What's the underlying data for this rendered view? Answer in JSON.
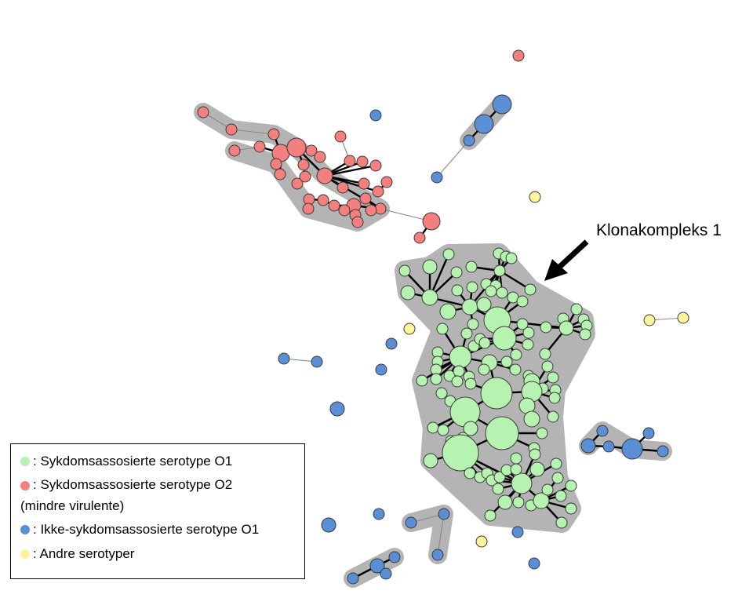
{
  "annotation": {
    "label": "Klonakompleks 1"
  },
  "colors": {
    "o1_disease": "#b6f2b0",
    "o2_disease": "#f47f7f",
    "o1_non_disease": "#5a8fd6",
    "other": "#fdf59c",
    "hull": "#b4b4b4"
  },
  "legend": {
    "items": [
      {
        "label": ": Sykdomsassosierte serotype O1",
        "color": "#b6f2b0"
      },
      {
        "label": ": Sykdomsassosierte serotype O2",
        "sub": "(mindre virulente)",
        "color": "#f47f7f"
      },
      {
        "label": ": Ikke-sykdomsassosierte serotype O1",
        "color": "#5a8fd6"
      },
      {
        "label": ": Andre serotyper",
        "color": "#fdf59c"
      }
    ]
  }
}
